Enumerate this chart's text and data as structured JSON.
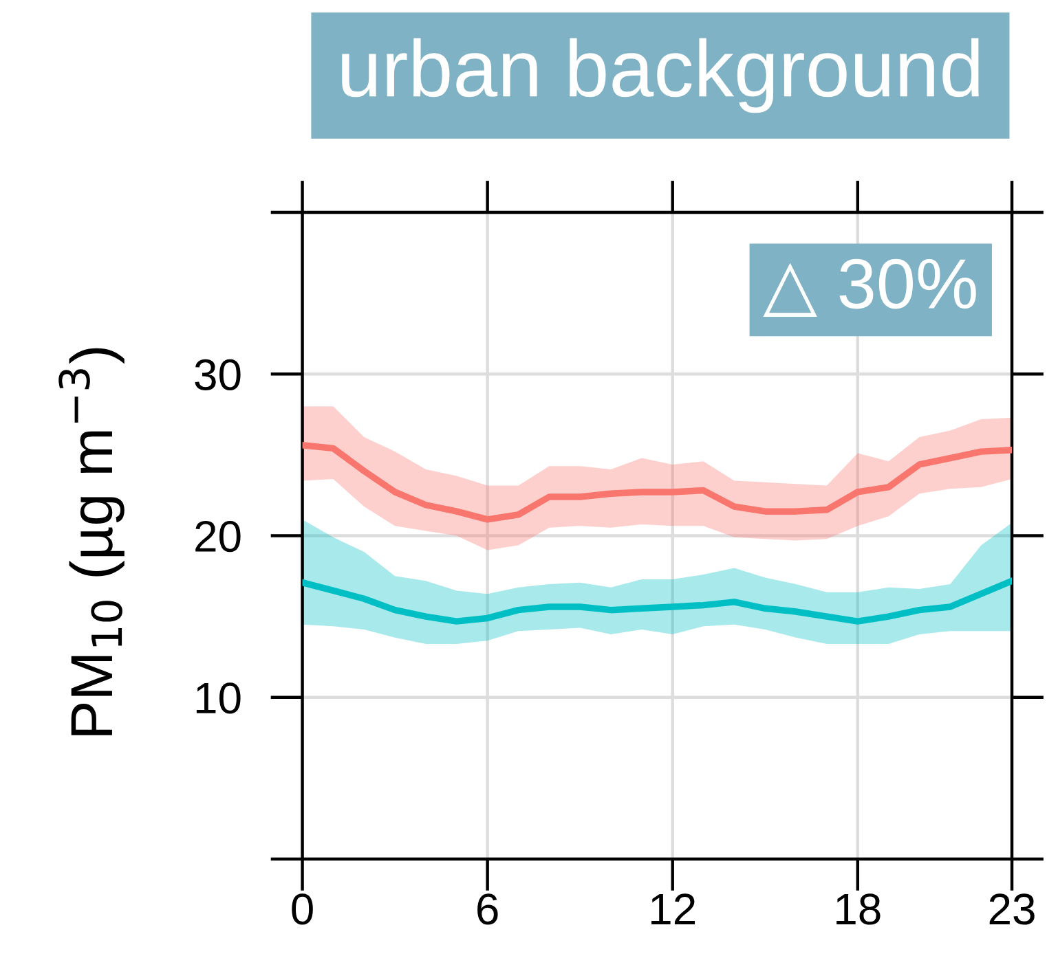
{
  "chart_data": {
    "type": "line",
    "title": "urban background",
    "ylabel": "PM$_{10}$ (µg m$^{−3}$)",
    "annotations": [
      "△ 30%"
    ],
    "x": [
      0,
      1,
      2,
      3,
      4,
      5,
      6,
      7,
      8,
      9,
      10,
      11,
      12,
      13,
      14,
      15,
      16,
      17,
      18,
      19,
      20,
      21,
      22,
      23
    ],
    "xlim": [
      0,
      23
    ],
    "xticks": [
      0,
      6,
      12,
      18,
      23
    ],
    "ylim": [
      0,
      40
    ],
    "yticks": [
      {
        "value": 0,
        "label": null
      },
      10,
      20,
      30,
      {
        "value": 40,
        "label": null
      }
    ],
    "grid": true,
    "line_style": "solid",
    "series": [
      {
        "color": "#f8766d",
        "values": [
          25.6,
          25.4,
          24.0,
          22.7,
          21.9,
          21.5,
          21.0,
          21.3,
          22.4,
          22.4,
          22.6,
          22.7,
          22.7,
          22.8,
          21.8,
          21.5,
          21.5,
          21.6,
          22.7,
          23.0,
          24.4,
          24.8,
          25.2,
          25.3
        ],
        "upper": [
          28.0,
          28.0,
          26.1,
          25.2,
          24.1,
          23.7,
          23.1,
          23.1,
          24.3,
          24.3,
          24.1,
          24.8,
          24.4,
          24.6,
          23.4,
          23.3,
          23.2,
          23.1,
          25.1,
          24.6,
          26.1,
          26.5,
          27.2,
          27.3
        ],
        "lower": [
          23.4,
          23.5,
          21.8,
          20.6,
          20.3,
          20.0,
          19.1,
          19.4,
          20.5,
          20.6,
          20.5,
          20.7,
          20.6,
          20.6,
          19.9,
          19.8,
          19.7,
          19.8,
          20.6,
          21.2,
          22.6,
          22.9,
          23.0,
          23.5
        ]
      },
      {
        "color": "#00bfc4",
        "values": [
          17.1,
          16.6,
          16.1,
          15.4,
          15.0,
          14.7,
          14.9,
          15.4,
          15.6,
          15.6,
          15.4,
          15.5,
          15.6,
          15.7,
          15.9,
          15.5,
          15.3,
          15.0,
          14.7,
          15.0,
          15.4,
          15.6,
          16.4,
          17.2
        ],
        "upper": [
          21.0,
          19.9,
          19.0,
          17.5,
          17.2,
          16.6,
          16.4,
          16.8,
          17.0,
          17.1,
          16.8,
          17.3,
          17.3,
          17.6,
          18.0,
          17.4,
          17.0,
          16.5,
          16.5,
          16.8,
          16.7,
          17.0,
          19.4,
          20.8
        ],
        "lower": [
          14.5,
          14.4,
          14.2,
          13.7,
          13.3,
          13.3,
          13.5,
          14.1,
          14.2,
          14.3,
          13.9,
          14.2,
          13.9,
          14.4,
          14.5,
          14.2,
          13.7,
          13.3,
          13.3,
          13.3,
          13.9,
          14.1,
          14.1,
          14.1
        ]
      }
    ]
  }
}
